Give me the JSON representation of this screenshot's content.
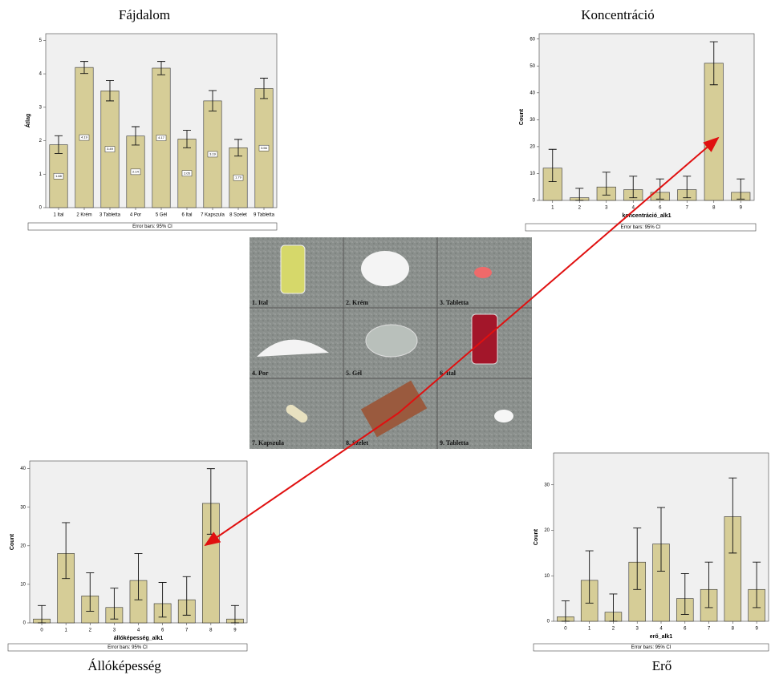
{
  "chart_data": [
    {
      "type": "bar",
      "title": "Fájdalom",
      "y_label": "Átlag",
      "footer": "Error bars: 95% CI",
      "show_value_labels": true,
      "categories": [
        "1 Ital",
        "2 Krém",
        "3 Tabletta",
        "4 Por",
        "5 Gél",
        "6 Ital",
        "7 Kapszula",
        "8 Szelet",
        "9 Tabletta"
      ],
      "values": [
        1.88,
        4.19,
        3.49,
        2.14,
        4.17,
        2.05,
        3.19,
        1.79,
        3.56
      ],
      "ci_low": [
        1.62,
        4.01,
        3.19,
        1.87,
        3.97,
        1.79,
        2.89,
        1.54,
        3.26
      ],
      "ci_high": [
        2.15,
        4.37,
        3.8,
        2.42,
        4.37,
        2.31,
        3.5,
        2.04,
        3.87
      ],
      "color": "#d6cd97",
      "ylim": [
        0,
        5.2
      ],
      "yticks": [
        0,
        1,
        2,
        3,
        4,
        5
      ]
    },
    {
      "type": "bar",
      "title": "Koncentráció",
      "y_label": "Count",
      "x_label": "koncentráció_alk1",
      "footer": "Error bars: 95% CI",
      "categories": [
        "1",
        "2",
        "3",
        "4",
        "6",
        "7",
        "8",
        "9"
      ],
      "values": [
        12,
        1,
        5,
        4,
        3,
        4,
        51,
        3
      ],
      "ci_low": [
        7,
        0,
        2,
        1,
        0.5,
        1,
        43,
        0.5
      ],
      "ci_high": [
        19,
        4.5,
        10.5,
        9,
        8,
        9,
        59,
        8
      ],
      "color": "#d6cd97",
      "ylim": [
        0,
        62
      ],
      "yticks": [
        0,
        10,
        20,
        30,
        40,
        50,
        60
      ]
    },
    {
      "type": "bar",
      "title": "Állóképesség",
      "y_label": "Count",
      "x_label": "állóképesség_alk1",
      "footer": "Error bars: 95% CI",
      "categories": [
        "0",
        "1",
        "2",
        "3",
        "4",
        "6",
        "7",
        "8",
        "9"
      ],
      "values": [
        1,
        18,
        7,
        4,
        11,
        5,
        6,
        31,
        1
      ],
      "ci_low": [
        0,
        11.5,
        3,
        1,
        6,
        1.5,
        2,
        23,
        0
      ],
      "ci_high": [
        4.5,
        26,
        13,
        9,
        18,
        10.5,
        12,
        40,
        4.5
      ],
      "color": "#d6cd97",
      "ylim": [
        0,
        42
      ],
      "yticks": [
        0,
        10,
        20,
        30,
        40
      ]
    },
    {
      "type": "bar",
      "title": "Erő",
      "y_label": "Count",
      "x_label": "erő_alk1",
      "footer": "Error bars: 95% CI",
      "categories": [
        "0",
        "1",
        "2",
        "3",
        "4",
        "6",
        "7",
        "8",
        "9"
      ],
      "values": [
        1,
        9,
        2,
        13,
        17,
        5,
        7,
        23,
        7
      ],
      "ci_low": [
        0,
        4,
        0,
        7,
        11,
        1.5,
        3,
        15,
        3
      ],
      "ci_high": [
        4.5,
        15.5,
        6,
        20.5,
        25,
        10.5,
        13,
        31.5,
        13
      ],
      "color": "#d6cd97",
      "ylim": [
        0,
        37
      ],
      "yticks": [
        0,
        10,
        20,
        30
      ]
    }
  ],
  "photo_grid": {
    "labels": [
      "1. Ital",
      "2. Krém",
      "3. Tabletta",
      "4. Por",
      "5. Gél",
      "6. Ital",
      "7. Kapszula",
      "8. Szelet",
      "9. Tabletta"
    ]
  }
}
